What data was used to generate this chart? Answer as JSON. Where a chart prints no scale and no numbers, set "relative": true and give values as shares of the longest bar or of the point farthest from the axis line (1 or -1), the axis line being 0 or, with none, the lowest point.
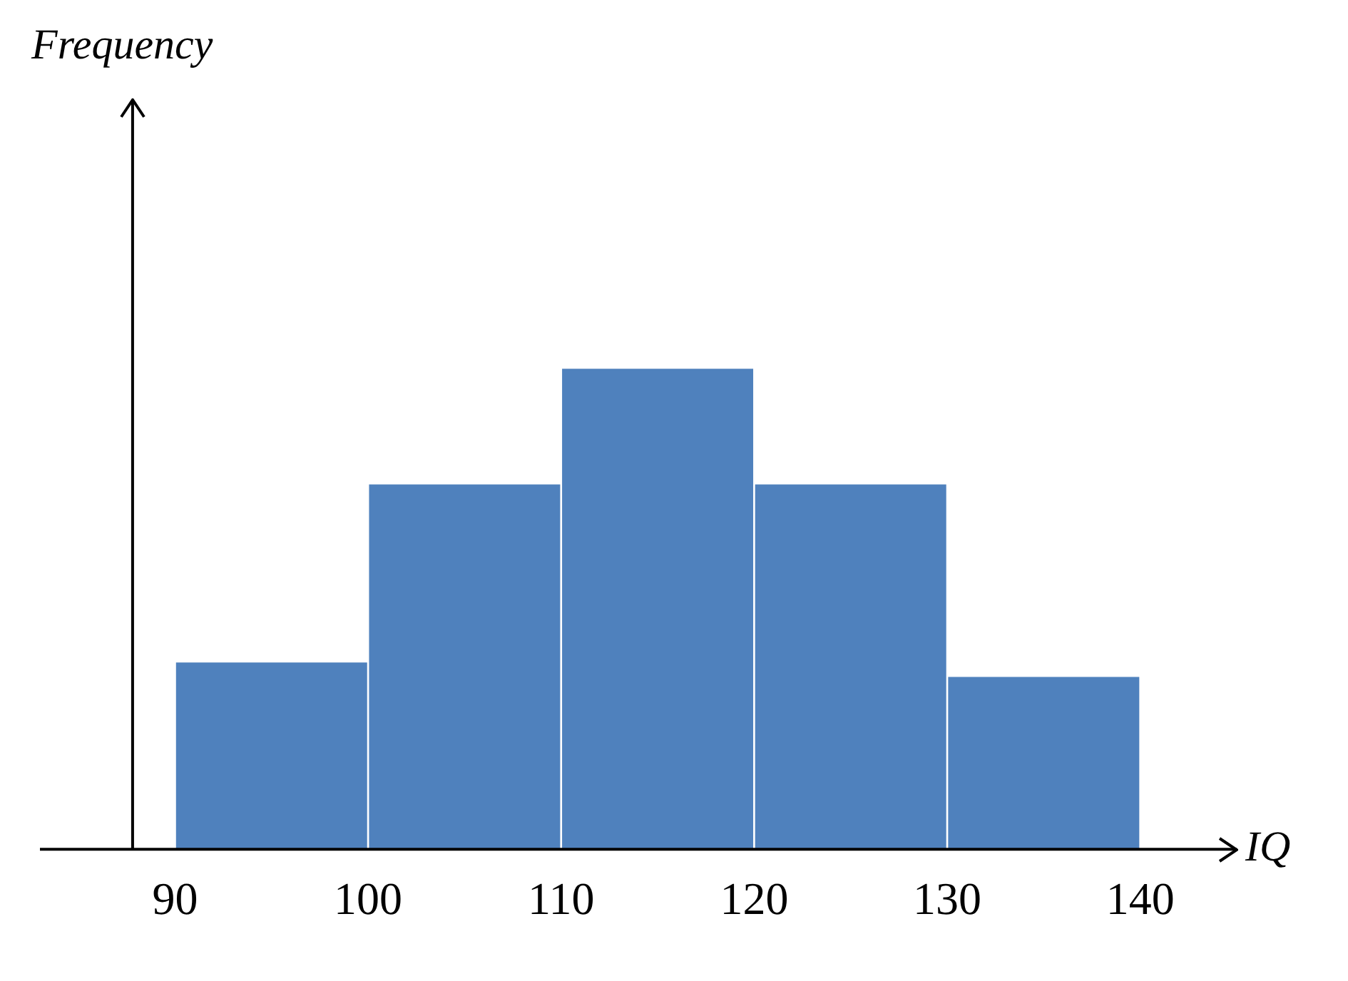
{
  "chart_data": {
    "type": "bar",
    "xlabel": "IQ",
    "annotations": [
      "Frequency"
    ],
    "relative": true,
    "x": [
      95,
      105,
      115,
      125,
      135
    ],
    "values": [
      0.39,
      0.76,
      1,
      0.76,
      0.36
    ],
    "color": "#4f81bd",
    "ref_lines": [
      {
        "axis": "x",
        "value": 87.8,
        "color": "#000000"
      }
    ],
    "xlim": [
      83,
      145
    ],
    "xticks": [
      90,
      100,
      110,
      120,
      130,
      140
    ],
    "grid": false,
    "legend": false
  }
}
